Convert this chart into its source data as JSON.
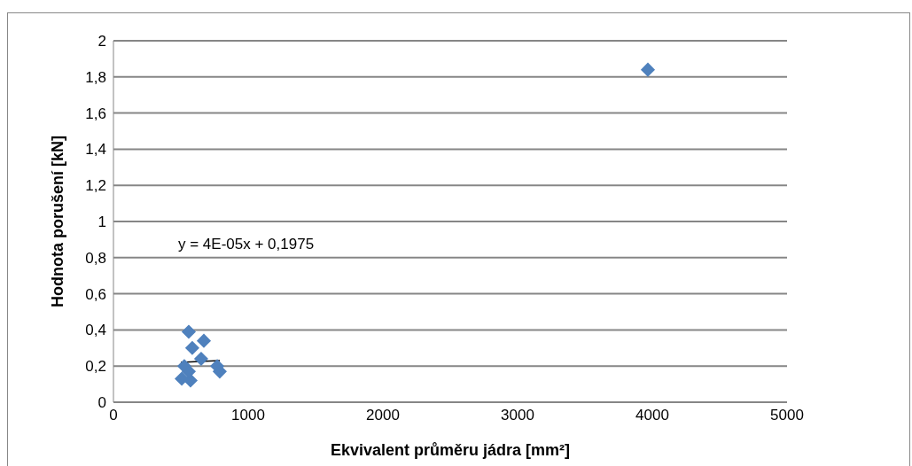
{
  "chart_data": {
    "type": "scatter",
    "xlabel": "Ekvivalent průměru jádra [mm²]",
    "ylabel": "Hodnota porušení [kN]",
    "xlim": [
      0,
      5000
    ],
    "xticks": [
      0,
      1000,
      2000,
      3000,
      4000,
      5000
    ],
    "ylim": [
      0,
      2
    ],
    "yticks": [
      0,
      {
        "value": 0.2,
        "label": "0,2"
      },
      {
        "value": 0.4,
        "label": "0,4"
      },
      {
        "value": 0.6,
        "label": "0,6"
      },
      {
        "value": 0.8,
        "label": "0,8"
      },
      1,
      {
        "value": 1.2,
        "label": "1,2"
      },
      {
        "value": 1.4,
        "label": "1,4"
      },
      {
        "value": 1.6,
        "label": "1,6"
      },
      {
        "value": 1.8,
        "label": "1,8"
      },
      2
    ],
    "grid": "y",
    "marker": "diamond",
    "annotations": [
      "y = 4E-05x + 0,1975"
    ],
    "series": [
      {
        "color": "#4f81bd",
        "x": [
          559,
          671,
          585,
          651,
          526,
          770,
          789,
          507,
          572,
          559
        ],
        "values": [
          0.39,
          0.34,
          0.3,
          0.24,
          0.2,
          0.2,
          0.17,
          0.13,
          0.12,
          0.17
        ]
      },
      {
        "color": "#4f81bd",
        "x": [
          3967
        ],
        "values": [
          1.84
        ]
      },
      {
        "type": "line",
        "marker": "none",
        "color": "#000000",
        "x": [
          500,
          790
        ],
        "values": [
          0.22,
          0.23
        ]
      }
    ]
  }
}
